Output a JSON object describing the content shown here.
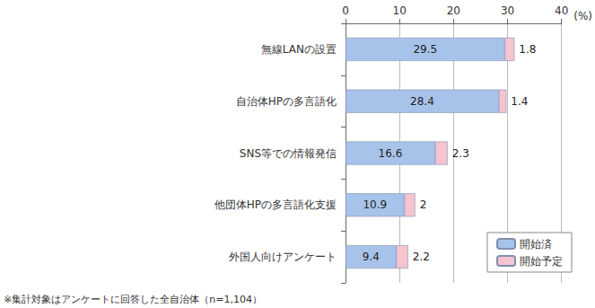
{
  "chart_data": {
    "type": "bar",
    "orientation": "horizontal",
    "stacked": true,
    "data_labels": true,
    "grid": true,
    "legend": "lower right",
    "xlabel": "(%)",
    "annotations": [
      "※集計対象はアンケートに回答した全自治体（n=1,104）"
    ],
    "categories": [
      "無線LANの設置",
      "自治体HPの多言語化",
      "SNS等での情報発信",
      "他団体HPの多言語化支援",
      "外国人向けアンケート"
    ],
    "series": [
      {
        "name": "開始済",
        "color": "#a8c3ea",
        "values": [
          29.5,
          28.4,
          16.6,
          10.9,
          9.4
        ]
      },
      {
        "name": "開始予定",
        "color": "#f5c4cf",
        "values": [
          1.8,
          1.4,
          2.3,
          2.0,
          2.2
        ]
      }
    ],
    "xlim": [
      0,
      40
    ],
    "xticks": [
      0,
      10,
      20,
      30,
      40
    ]
  }
}
